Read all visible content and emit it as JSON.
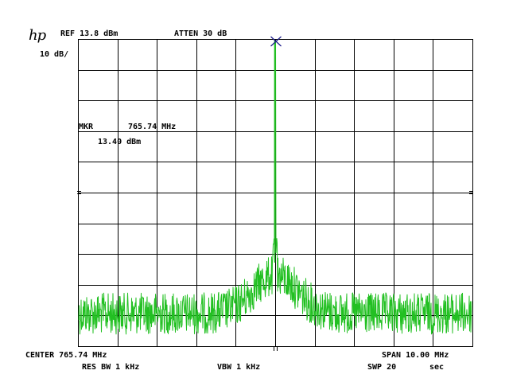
{
  "instrument": {
    "logo": "hp"
  },
  "settings": {
    "ref_level": "REF 13.8 dBm",
    "attenuation": "ATTEN 30 dB",
    "scale": "10 dB/",
    "center": "CENTER 765.74 MHz",
    "span": "SPAN 10.00 MHz",
    "res_bw": "RES BW 1 kHz",
    "vbw": "VBW 1 kHz",
    "sweep": "SWP 20",
    "sweep_unit": "sec"
  },
  "marker": {
    "label": "MKR",
    "frequency": "765.74 MHz",
    "amplitude": "13.40 dBm"
  },
  "colors": {
    "trace": "#22c022",
    "grid": "#000000",
    "marker": "#1a1a8a",
    "background": "#ffffff"
  }
}
